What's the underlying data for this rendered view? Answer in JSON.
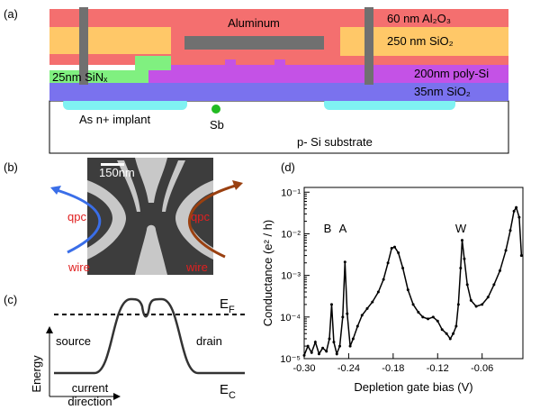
{
  "panels": {
    "a": "(a)",
    "b": "(b)",
    "c": "(c)",
    "d": "(d)"
  },
  "cross_section": {
    "aluminum": "Aluminum",
    "al2o3": "60 nm Al₂O₃",
    "sio2_thick": "250 nm SiO₂",
    "sinx": "25nm SiNₓ",
    "polysi": "200nm poly-Si",
    "sio2_thin": "35nm SiO₂",
    "implant": "As n+ implant",
    "sb": "Sb",
    "substrate": "p- Si substrate"
  },
  "sem_image": {
    "scale_bar": "150nm",
    "labels": [
      "qpc",
      "qpc",
      "wire",
      "wire"
    ]
  },
  "band_diagram": {
    "fermi": {
      "main": "E",
      "sub": "F"
    },
    "conduction": {
      "main": "E",
      "sub": "C"
    },
    "source": "source",
    "drain": "drain",
    "y_axis": "Energy",
    "x_axis": [
      "current",
      "direction"
    ]
  },
  "chart_data": {
    "type": "line",
    "x_label": "Depletion gate bias (V)",
    "y_label": "Conductance (e² / h)",
    "annotations": [
      "B",
      "A",
      "W"
    ],
    "y_scale": "log",
    "xlim": [
      -0.3,
      -0.005
    ],
    "ylim": [
      1e-05,
      0.13
    ],
    "xticks": [
      {
        "value": -0.3,
        "label": "-0.30"
      },
      -0.24,
      -0.18,
      -0.12,
      -0.06
    ],
    "yticks": [
      {
        "value": 1e-05,
        "label": "10⁻⁵"
      },
      {
        "value": 0.0001,
        "label": "10⁻⁴"
      },
      {
        "value": 0.001,
        "label": "10⁻³"
      },
      {
        "value": 0.01,
        "label": "10⁻²"
      },
      {
        "value": 0.1,
        "label": "10⁻¹"
      }
    ],
    "color": "#000000",
    "x": [
      -0.3,
      -0.295,
      -0.29,
      -0.285,
      -0.28,
      -0.275,
      -0.27,
      -0.266,
      -0.263,
      -0.26,
      -0.256,
      -0.252,
      -0.248,
      -0.245,
      -0.242,
      -0.238,
      -0.234,
      -0.228,
      -0.222,
      -0.215,
      -0.208,
      -0.2,
      -0.193,
      -0.187,
      -0.182,
      -0.178,
      -0.173,
      -0.167,
      -0.16,
      -0.153,
      -0.146,
      -0.14,
      -0.133,
      -0.126,
      -0.12,
      -0.114,
      -0.108,
      -0.103,
      -0.099,
      -0.095,
      -0.092,
      -0.089,
      -0.087,
      -0.084,
      -0.08,
      -0.075,
      -0.068,
      -0.06,
      -0.052,
      -0.044,
      -0.036,
      -0.028,
      -0.022,
      -0.017,
      -0.014,
      -0.01,
      -0.007
    ],
    "values": [
      1.2e-05,
      2e-05,
      1.4e-05,
      2.5e-05,
      1.3e-05,
      1.8e-05,
      1.5e-05,
      3e-05,
      0.0002,
      2.5e-05,
      1.3e-05,
      2e-05,
      0.0001,
      0.0021,
      0.00012,
      2e-05,
      3e-05,
      6e-05,
      0.00011,
      0.00016,
      0.00023,
      0.0004,
      0.0008,
      0.002,
      0.0045,
      0.0048,
      0.0035,
      0.0015,
      0.00045,
      0.0002,
      0.00013,
      0.0001,
      9e-05,
      0.0001,
      8e-05,
      5e-05,
      4e-05,
      3e-05,
      4e-05,
      6e-05,
      0.0002,
      0.0015,
      0.007,
      0.0025,
      0.0006,
      0.00025,
      0.00018,
      0.0002,
      0.0003,
      0.0006,
      0.0013,
      0.004,
      0.012,
      0.035,
      0.043,
      0.025,
      0.003
    ]
  }
}
